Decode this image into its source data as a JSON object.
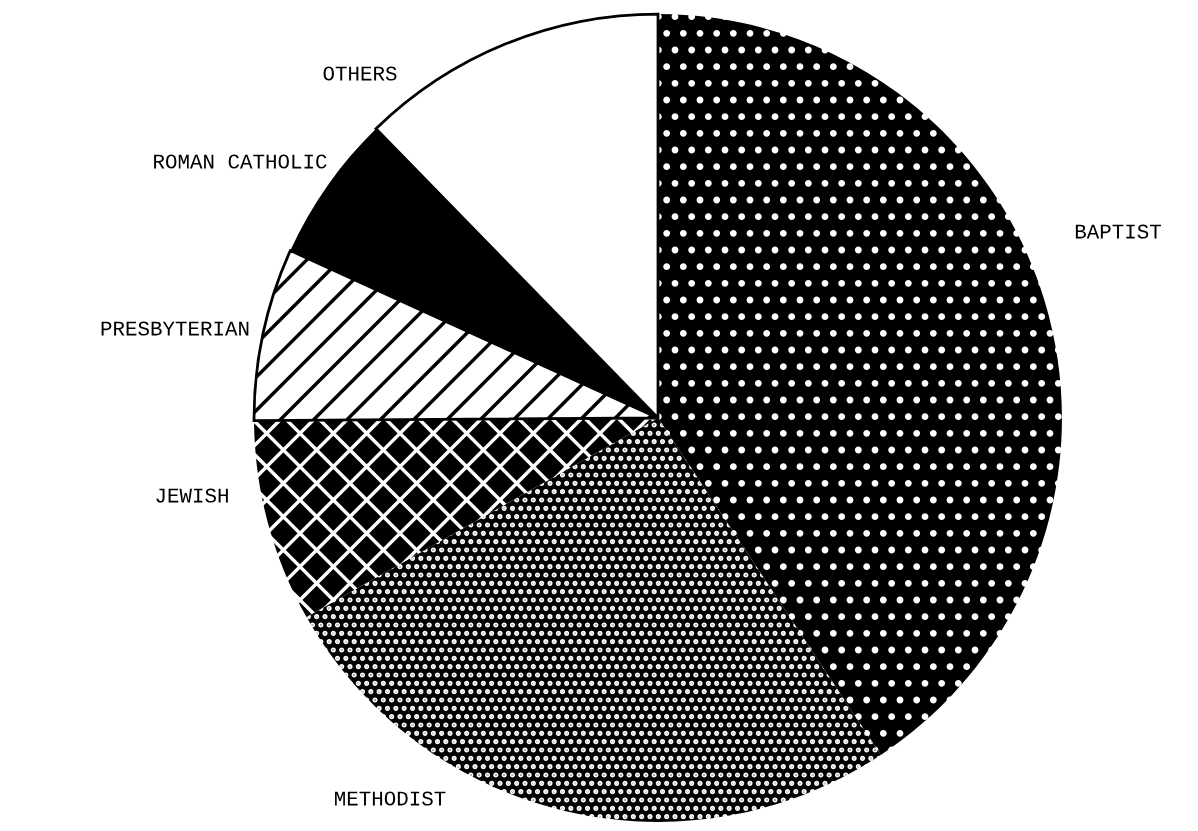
{
  "chart_data": {
    "type": "pie",
    "categories": [
      "BAPTIST",
      "METHODIST",
      "JEWISH",
      "PRESBYTERIAN",
      "ROMAN CATHOLIC",
      "OTHERS"
    ],
    "values": [
      40.7,
      26.1,
      8.1,
      6.9,
      5.9,
      12.3
    ],
    "colors": [
      "#000000",
      "#000000",
      "#000000",
      "#000000",
      "#000000",
      "#ffffff"
    ]
  }
}
